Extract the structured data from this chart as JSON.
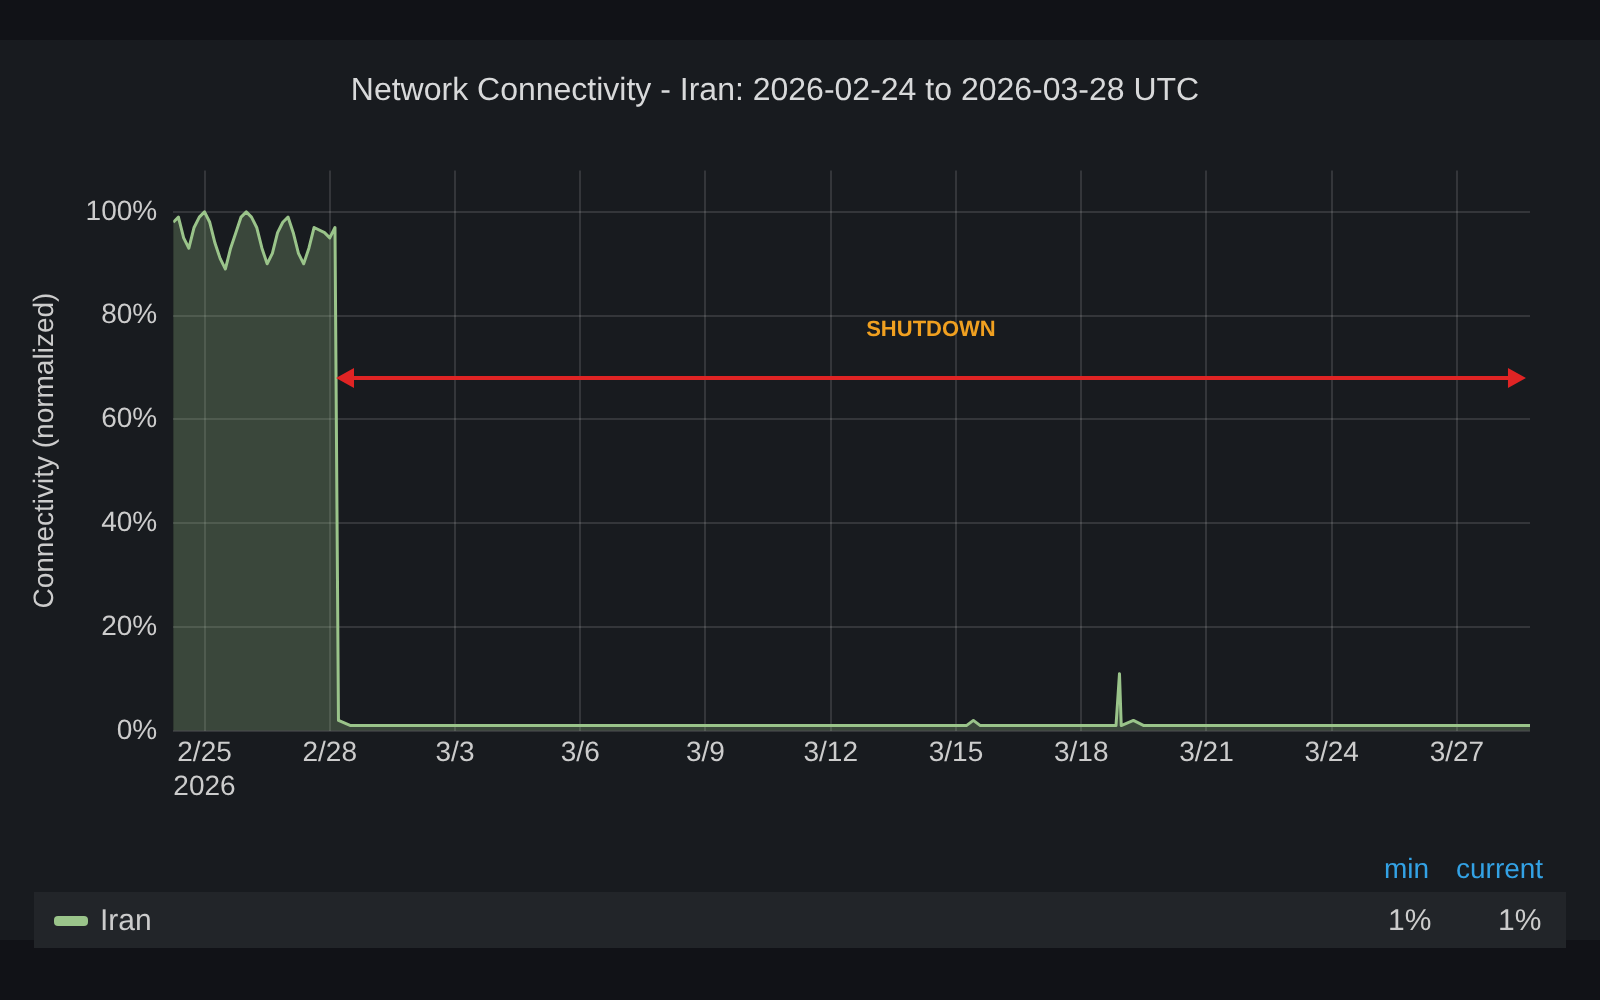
{
  "chart_data": {
    "type": "area",
    "title": "Network Connectivity - Iran: 2026-02-24 to 2026-03-28 UTC",
    "ylabel": "Connectivity (normalized)",
    "series": [
      {
        "name": "Iran",
        "color": "#9ac48a",
        "x": [
          "2026-02-24T06:00",
          "2026-02-24T09:00",
          "2026-02-24T12:00",
          "2026-02-24T15:00",
          "2026-02-24T18:00",
          "2026-02-24T21:00",
          "2026-02-25T00:00",
          "2026-02-25T03:00",
          "2026-02-25T06:00",
          "2026-02-25T09:00",
          "2026-02-25T12:00",
          "2026-02-25T15:00",
          "2026-02-25T18:00",
          "2026-02-25T21:00",
          "2026-02-26T00:00",
          "2026-02-26T03:00",
          "2026-02-26T06:00",
          "2026-02-26T09:00",
          "2026-02-26T12:00",
          "2026-02-26T15:00",
          "2026-02-26T18:00",
          "2026-02-26T21:00",
          "2026-02-27T00:00",
          "2026-02-27T03:00",
          "2026-02-27T06:00",
          "2026-02-27T09:00",
          "2026-02-27T12:00",
          "2026-02-27T15:00",
          "2026-02-27T21:00",
          "2026-02-28T00:00",
          "2026-02-28T03:00",
          "2026-02-28T05:00",
          "2026-02-28T12:00",
          "2026-03-02T00:00",
          "2026-03-05T00:00",
          "2026-03-08T00:00",
          "2026-03-11T00:00",
          "2026-03-14T00:00",
          "2026-03-15T06:00",
          "2026-03-15T10:00",
          "2026-03-15T14:00",
          "2026-03-17T00:00",
          "2026-03-18T20:00",
          "2026-03-18T22:00",
          "2026-03-18T23:00",
          "2026-03-19T06:00",
          "2026-03-19T12:00",
          "2026-03-22T00:00",
          "2026-03-25T00:00",
          "2026-03-28T18:00"
        ],
        "values": [
          98,
          99,
          95,
          93,
          97,
          99,
          100,
          98,
          94,
          91,
          89,
          93,
          96,
          99,
          100,
          99,
          97,
          93,
          90,
          92,
          96,
          98,
          99,
          96,
          92,
          90,
          93,
          97,
          96,
          95,
          97,
          2,
          1,
          1,
          1,
          1,
          1,
          1,
          1,
          2,
          1,
          1,
          1,
          11,
          1,
          2,
          1,
          1,
          1,
          1
        ]
      }
    ],
    "xlim": [
      "2026-02-24T06:00",
      "2026-03-28T18:00"
    ],
    "xticks": [
      {
        "value": "2026-02-25",
        "label": "2/25\n2026"
      },
      {
        "value": "2026-02-28",
        "label": "2/28"
      },
      {
        "value": "2026-03-03",
        "label": "3/3"
      },
      {
        "value": "2026-03-06",
        "label": "3/6"
      },
      {
        "value": "2026-03-09",
        "label": "3/9"
      },
      {
        "value": "2026-03-12",
        "label": "3/12"
      },
      {
        "value": "2026-03-15",
        "label": "3/15"
      },
      {
        "value": "2026-03-18",
        "label": "3/18"
      },
      {
        "value": "2026-03-21",
        "label": "3/21"
      },
      {
        "value": "2026-03-24",
        "label": "3/24"
      },
      {
        "value": "2026-03-27",
        "label": "3/27"
      }
    ],
    "ylim": [
      0,
      108
    ],
    "yticks": [
      {
        "value": 0,
        "label": "0%"
      },
      {
        "value": 20,
        "label": "20%"
      },
      {
        "value": 40,
        "label": "40%"
      },
      {
        "value": 60,
        "label": "60%"
      },
      {
        "value": 80,
        "label": "80%"
      },
      {
        "value": 100,
        "label": "100%"
      }
    ],
    "annotations": [
      "SHUTDOWN",
      "min",
      "current",
      "1%",
      "1%"
    ],
    "grid": true,
    "legend": "bottom"
  }
}
